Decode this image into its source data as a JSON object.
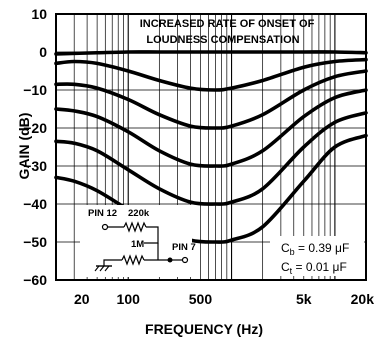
{
  "chart_data": {
    "type": "line",
    "title": "INCREASED RATE OF ONSET OF LOUDNESS COMPENSATION",
    "title_lines": [
      "INCREASED RATE OF ONSET OF",
      "LOUDNESS COMPENSATION"
    ],
    "xlabel": "FREQUENCY (Hz)",
    "ylabel": "GAIN (dB)",
    "x_scale": "log",
    "xlim": [
      20,
      20000
    ],
    "ylim": [
      -60,
      10
    ],
    "grid": true,
    "x_ticks": [
      {
        "value": 20,
        "label": "20"
      },
      {
        "value": 100,
        "label": "100"
      },
      {
        "value": 500,
        "label": "500"
      },
      {
        "value": 5000,
        "label": "5k"
      },
      {
        "value": 20000,
        "label": "20k"
      }
    ],
    "y_ticks": [
      {
        "value": 10,
        "label": "10"
      },
      {
        "value": 0,
        "label": "0"
      },
      {
        "value": -10,
        "label": "−10"
      },
      {
        "value": -20,
        "label": "−20"
      },
      {
        "value": -30,
        "label": "−30"
      },
      {
        "value": -40,
        "label": "−40"
      },
      {
        "value": -50,
        "label": "−50"
      },
      {
        "value": -60,
        "label": "−60"
      }
    ],
    "series": [
      {
        "x": [
          20,
          50,
          100,
          200,
          400,
          700,
          1000,
          2000,
          5000,
          10000,
          20000
        ],
        "y": [
          -0.5,
          -0.2,
          0,
          0,
          0,
          0,
          0,
          0,
          0,
          0,
          -0.2
        ]
      },
      {
        "x": [
          20,
          30,
          50,
          100,
          200,
          400,
          700,
          1000,
          2000,
          5000,
          10000,
          20000
        ],
        "y": [
          -3,
          -2.5,
          -3,
          -5,
          -7.5,
          -9.5,
          -10,
          -9.5,
          -7.5,
          -4,
          -2.5,
          -2
        ]
      },
      {
        "x": [
          20,
          30,
          50,
          100,
          200,
          400,
          700,
          1000,
          2000,
          5000,
          10000,
          20000
        ],
        "y": [
          -8.5,
          -8.5,
          -9.5,
          -12.5,
          -16.5,
          -19.5,
          -20,
          -19.5,
          -16.5,
          -10,
          -6.5,
          -5
        ]
      },
      {
        "x": [
          20,
          30,
          50,
          100,
          200,
          400,
          700,
          1000,
          2000,
          5000,
          10000,
          20000
        ],
        "y": [
          -15,
          -15.5,
          -17,
          -21,
          -26,
          -29.5,
          -30,
          -29.5,
          -26,
          -17,
          -12,
          -10
        ]
      },
      {
        "x": [
          20,
          30,
          50,
          100,
          200,
          400,
          700,
          1000,
          2000,
          5000,
          10000,
          20000
        ],
        "y": [
          -23.5,
          -24,
          -26,
          -31,
          -36,
          -39.5,
          -40,
          -39.5,
          -36,
          -25,
          -18.5,
          -16
        ]
      },
      {
        "x": [
          20,
          30,
          50,
          100,
          200,
          400,
          700,
          1000,
          2000,
          5000,
          10000,
          20000
        ],
        "y": [
          -33,
          -34,
          -36.5,
          -41.5,
          -46.5,
          -49.5,
          -50,
          -49.5,
          -46,
          -34,
          -25,
          -22
        ]
      }
    ],
    "schematic": {
      "pin12": "PIN 12",
      "r1": "220k",
      "r2": "1M",
      "pin7": "PIN 7",
      "cb_label": "C",
      "cb_sub": "b",
      "cb_value": " = 0.39 μF",
      "ct_label": "C",
      "ct_sub": "t",
      "ct_value": " = 0.01 μF"
    }
  }
}
